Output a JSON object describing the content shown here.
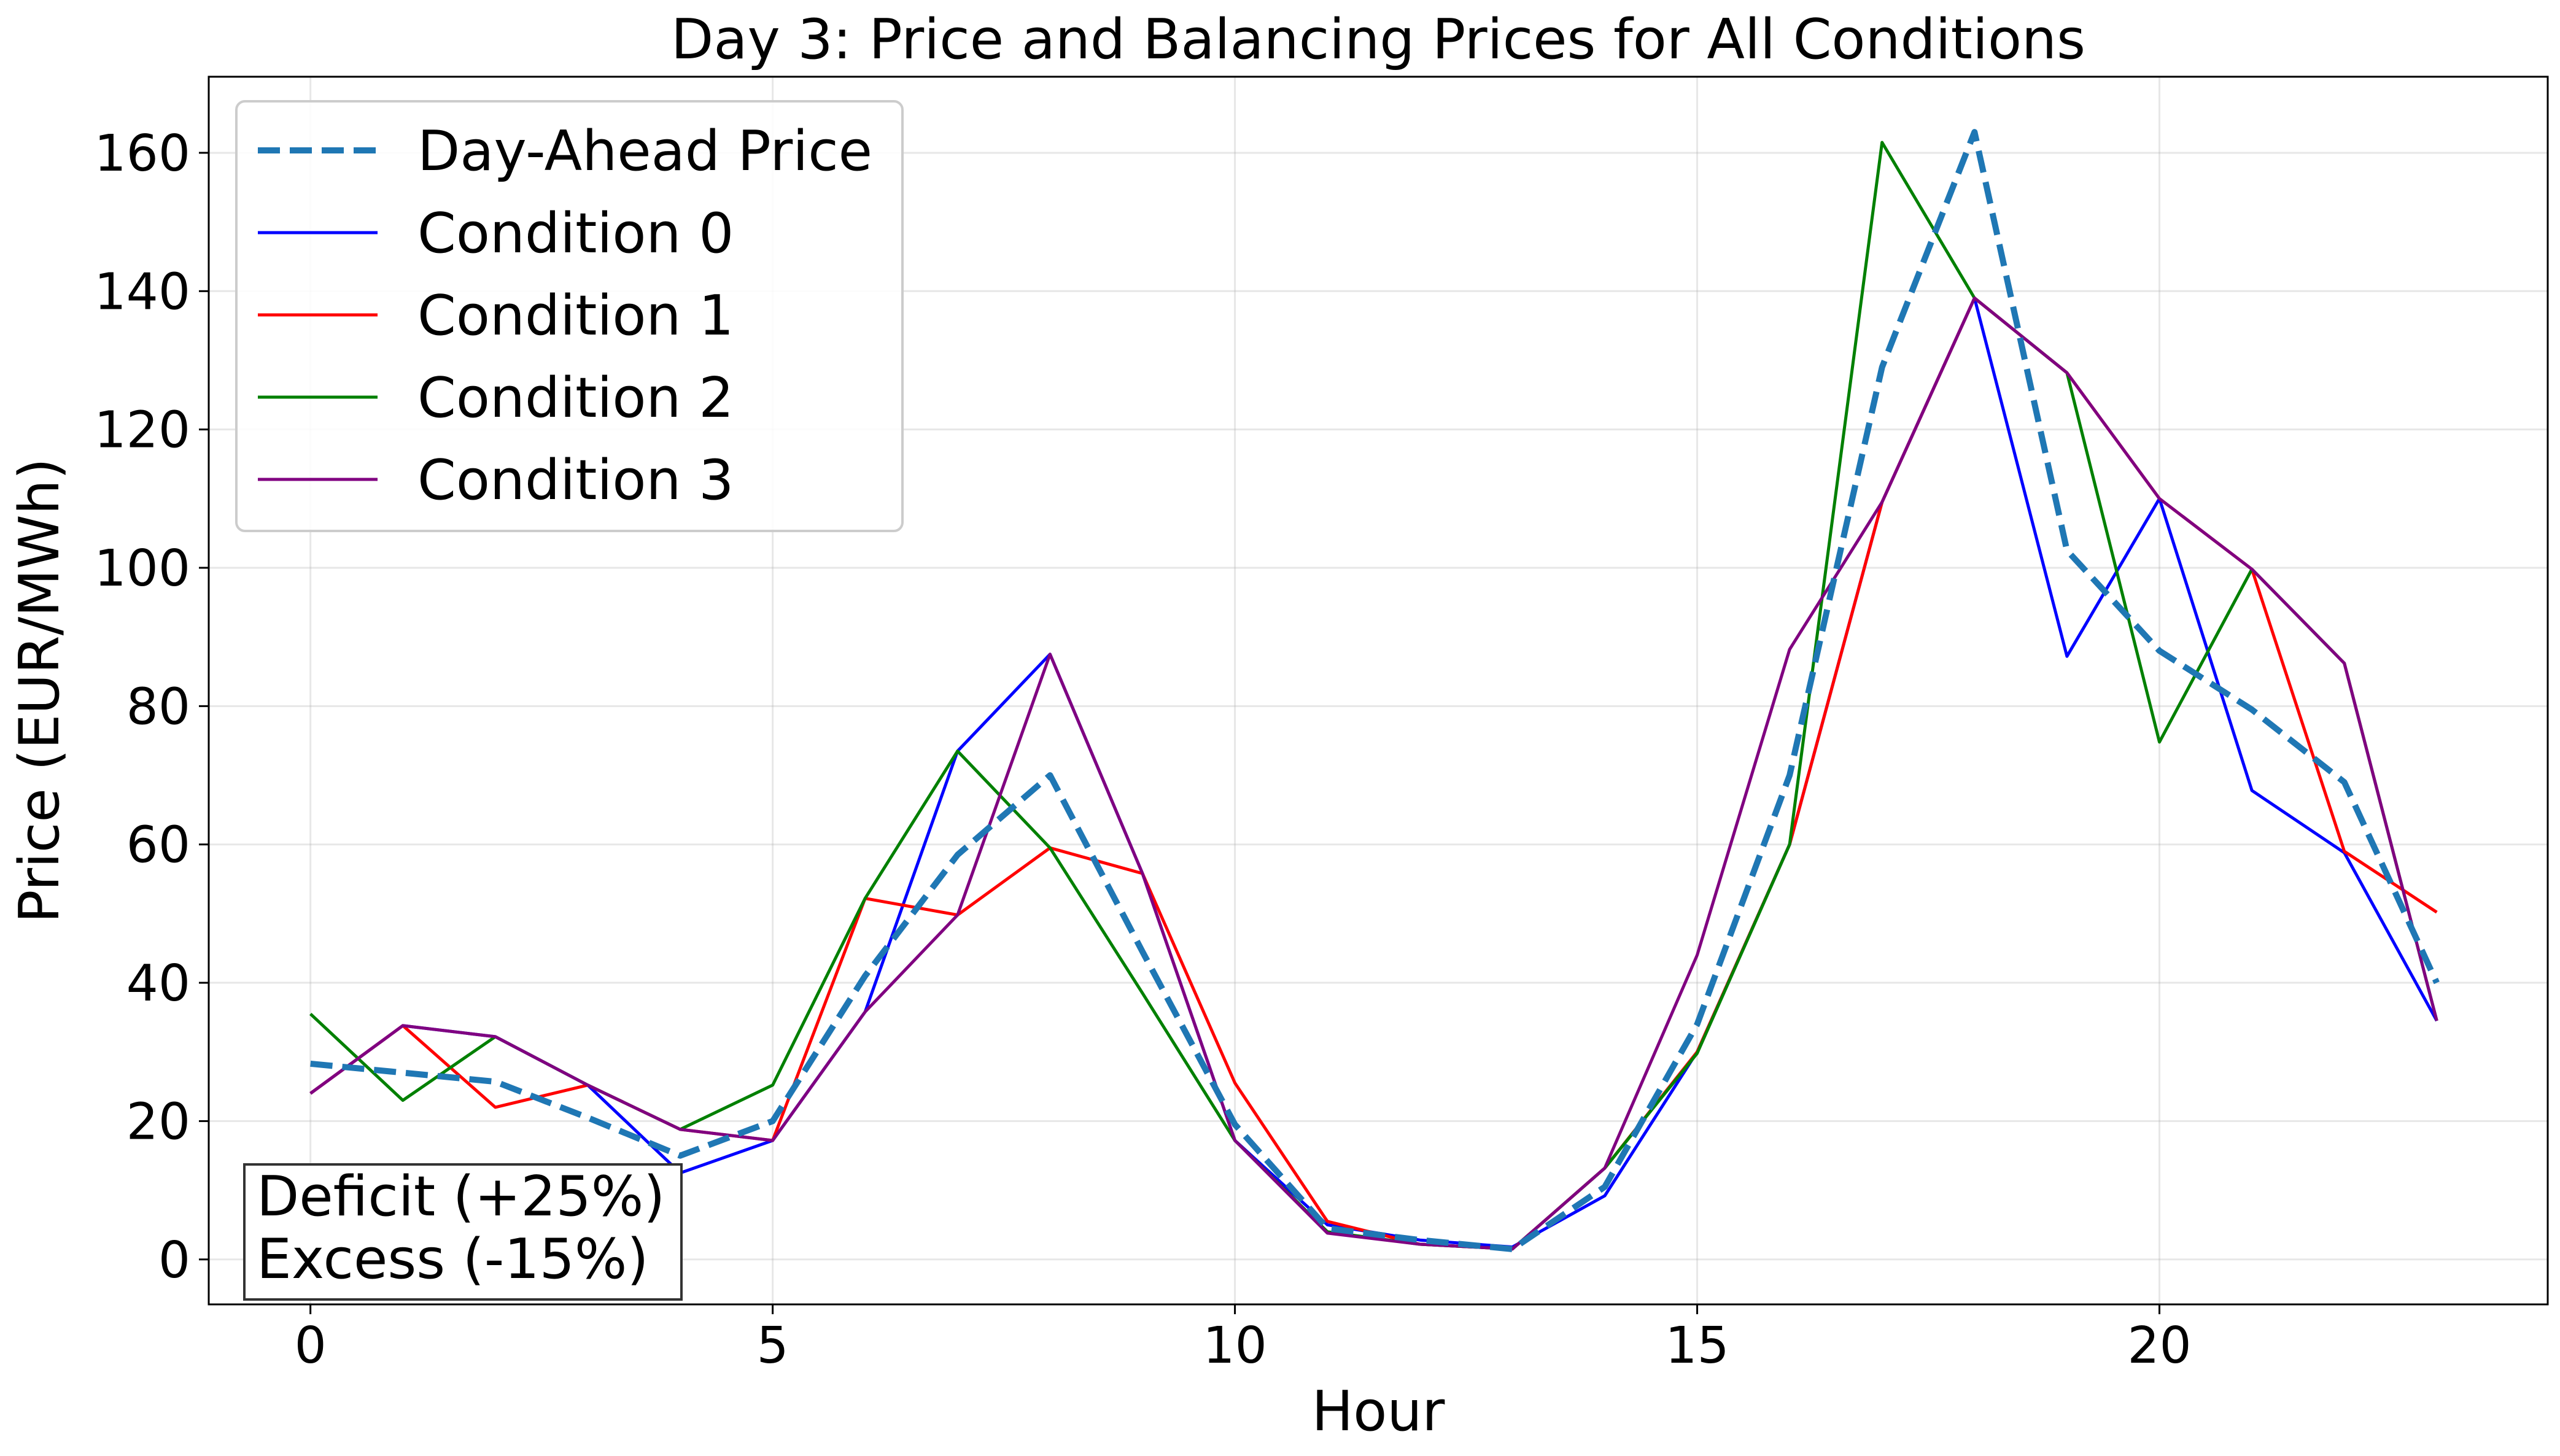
{
  "chart_data": {
    "type": "line",
    "title": "Day 3: Price and Balancing Prices for All Conditions",
    "xlabel": "Hour",
    "ylabel": "Price (EUR/MWh)",
    "xlim": [
      -1.1,
      24.2
    ],
    "ylim": [
      -6.5,
      171
    ],
    "xticks": [
      0,
      5,
      10,
      15,
      20
    ],
    "yticks": [
      0,
      20,
      40,
      60,
      80,
      100,
      120,
      140,
      160
    ],
    "grid": true,
    "legend_position": "top-left",
    "x": [
      0,
      1,
      2,
      3,
      4,
      5,
      6,
      7,
      8,
      9,
      10,
      11,
      12,
      13,
      14,
      15,
      16,
      17,
      18,
      19,
      20,
      21,
      22,
      23
    ],
    "series": [
      {
        "name": "Day-Ahead Price",
        "color": "#1f77b4",
        "dashed": true,
        "values": [
          28.3,
          27.0,
          25.7,
          20.5,
          15.0,
          20.0,
          41.0,
          58.5,
          70.0,
          44.5,
          19.5,
          4.5,
          2.8,
          1.5,
          10.5,
          34.0,
          70.0,
          129.0,
          163.0,
          102.5,
          88.0,
          79.5,
          69.0,
          40.0
        ]
      },
      {
        "name": "Condition 0",
        "color": "#0000ff",
        "dashed": false,
        "values": [
          24.0,
          33.8,
          32.2,
          25.2,
          12.5,
          17.2,
          35.8,
          73.5,
          87.5,
          55.8,
          17.2,
          5.0,
          2.8,
          1.8,
          9.2,
          30.0,
          60.0,
          109.5,
          139.0,
          87.2,
          110.0,
          67.8,
          58.8,
          34.5
        ]
      },
      {
        "name": "Condition 1",
        "color": "#ff0000",
        "dashed": false,
        "values": [
          24.0,
          33.8,
          22.0,
          25.2,
          18.8,
          17.2,
          52.2,
          49.8,
          59.5,
          55.8,
          25.5,
          5.5,
          2.2,
          1.5,
          13.2,
          30.0,
          60.0,
          109.5,
          139.0,
          128.2,
          110.0,
          99.8,
          59.0,
          50.2
        ]
      },
      {
        "name": "Condition 2",
        "color": "#008000",
        "dashed": false,
        "values": [
          35.5,
          23.0,
          32.2,
          25.2,
          18.8,
          25.2,
          52.2,
          73.5,
          59.5,
          38.5,
          17.2,
          4.0,
          2.2,
          1.5,
          13.2,
          29.8,
          60.0,
          161.5,
          139.0,
          128.2,
          74.8,
          99.8,
          86.2,
          34.5
        ]
      },
      {
        "name": "Condition 3",
        "color": "#800080",
        "dashed": false,
        "values": [
          24.0,
          33.8,
          32.2,
          25.2,
          18.8,
          17.2,
          35.8,
          49.8,
          87.5,
          55.8,
          17.2,
          3.8,
          2.2,
          1.5,
          13.2,
          44.0,
          88.2,
          109.5,
          139.0,
          128.2,
          110.0,
          99.8,
          86.2,
          34.5
        ]
      }
    ],
    "annotation": [
      "Deficit (+25%)",
      "Excess (-15%)"
    ]
  }
}
